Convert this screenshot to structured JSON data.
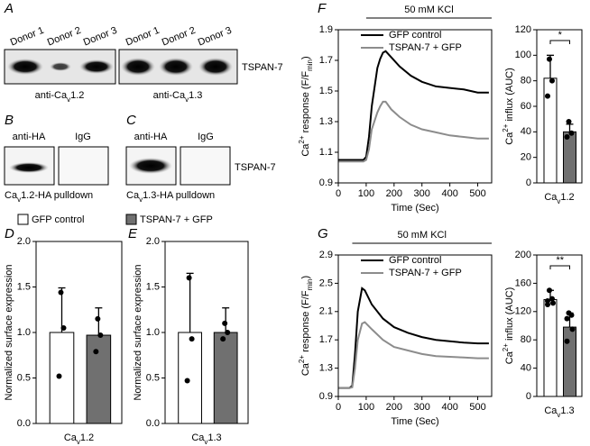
{
  "panel_A": {
    "letter": "A",
    "lanes": [
      "Donor 1",
      "Donor 2",
      "Donor 3",
      "Donor 1",
      "Donor 2",
      "Donor 3"
    ],
    "band_label": "TSPAN-7",
    "antibodies": [
      [
        {
          "text": "anti-Ca"
        },
        {
          "text": "v",
          "sub": true
        },
        {
          "text": "1.2"
        }
      ],
      [
        {
          "text": "anti-Ca"
        },
        {
          "text": "v",
          "sub": true
        },
        {
          "text": "1.3"
        }
      ]
    ]
  },
  "panel_B": {
    "letter": "B",
    "lanes": [
      "anti-HA",
      "IgG"
    ],
    "caption": [
      {
        "text": "Ca"
      },
      {
        "text": "v",
        "sub": true
      },
      {
        "text": "1.2-HA pulldown"
      }
    ]
  },
  "panel_C": {
    "letter": "C",
    "lanes": [
      "anti-HA",
      "IgG"
    ],
    "band_label": "TSPAN-7",
    "caption": [
      {
        "text": "Ca"
      },
      {
        "text": "v",
        "sub": true
      },
      {
        "text": "1.3-HA pulldown"
      }
    ]
  },
  "chart_data": [
    {
      "type": "bar",
      "panel": "D",
      "ylabel": [
        {
          "text": "Normalized surface expression"
        }
      ],
      "xlabel": [
        {
          "text": "Ca"
        },
        {
          "text": "v",
          "sub": true
        },
        {
          "text": "1.2"
        }
      ],
      "ylim": [
        0,
        2
      ],
      "yticks": [
        {
          "value": 0,
          "label": "0.0"
        },
        {
          "value": 0.5,
          "label": "0.5"
        },
        {
          "value": 1,
          "label": "1.0"
        },
        {
          "value": 1.5,
          "label": "1.5"
        },
        {
          "value": 2,
          "label": "2.0"
        }
      ],
      "series": [
        {
          "name": "GFP control",
          "color": "#ffffff",
          "values": [
            1.0
          ],
          "errors": [
            0.49
          ],
          "points": [
            1.44,
            1.05,
            0.52
          ]
        },
        {
          "name": "TSPAN-7 + GFP",
          "color": "#707070",
          "values": [
            0.97
          ],
          "errors": [
            0.3
          ],
          "points": [
            1.15,
            0.97,
            0.79
          ]
        }
      ]
    },
    {
      "type": "bar",
      "panel": "E",
      "ylabel": [
        {
          "text": "Normalized surface expression"
        }
      ],
      "xlabel": [
        {
          "text": "Ca"
        },
        {
          "text": "v",
          "sub": true
        },
        {
          "text": "1.3"
        }
      ],
      "ylim": [
        0,
        2
      ],
      "yticks": [
        {
          "value": 0,
          "label": "0.0"
        },
        {
          "value": 0.5,
          "label": "0.5"
        },
        {
          "value": 1,
          "label": "1.0"
        },
        {
          "value": 1.5,
          "label": "1.5"
        },
        {
          "value": 2,
          "label": "2.0"
        }
      ],
      "series": [
        {
          "color": "#ffffff",
          "values": [
            1.0
          ],
          "errors": [
            0.65
          ],
          "points": [
            1.6,
            0.93,
            0.47
          ]
        },
        {
          "color": "#707070",
          "values": [
            1.0
          ],
          "errors": [
            0.27
          ],
          "points": [
            1.1,
            1.0,
            0.93
          ]
        }
      ]
    },
    {
      "type": "line",
      "panel": "F",
      "stimulus": {
        "label": "50 mM KCl",
        "start": 100,
        "end": 550
      },
      "x": [
        0,
        90,
        100,
        110,
        120,
        140,
        150,
        160,
        170,
        190,
        220,
        260,
        300,
        350,
        400,
        450,
        500,
        540
      ],
      "xlim": [
        0,
        550
      ],
      "xticks": [
        0,
        100,
        200,
        300,
        400,
        500
      ],
      "xlabel": [
        {
          "text": "Time (Sec)"
        }
      ],
      "ylim": [
        0.9,
        1.9
      ],
      "yticks": [
        0.9,
        1.1,
        1.3,
        1.5,
        1.7,
        1.9
      ],
      "ylabel": [
        {
          "text": "Ca"
        },
        {
          "text": "2+",
          "sup": true
        },
        {
          "text": " response (F/F"
        },
        {
          "text": "min",
          "sub": true
        },
        {
          "text": ")"
        }
      ],
      "series": [
        {
          "name": "GFP control",
          "color": "#000000",
          "values": [
            1.05,
            1.05,
            1.07,
            1.2,
            1.4,
            1.65,
            1.71,
            1.75,
            1.76,
            1.72,
            1.66,
            1.6,
            1.56,
            1.53,
            1.52,
            1.51,
            1.49,
            1.49
          ]
        },
        {
          "name": "TSPAN-7 + GFP",
          "color": "#8c8c8c",
          "values": [
            1.04,
            1.04,
            1.05,
            1.12,
            1.25,
            1.36,
            1.4,
            1.43,
            1.43,
            1.38,
            1.33,
            1.28,
            1.25,
            1.23,
            1.21,
            1.2,
            1.19,
            1.19
          ]
        }
      ]
    },
    {
      "type": "bar",
      "ylabel": [
        {
          "text": "Ca"
        },
        {
          "text": "2+",
          "sup": true
        },
        {
          "text": " influx (AUC)"
        }
      ],
      "xlabel": [
        {
          "text": "Ca"
        },
        {
          "text": "v",
          "sub": true
        },
        {
          "text": "1.2"
        }
      ],
      "ylim": [
        0,
        120
      ],
      "yticks": [
        0,
        20,
        40,
        60,
        80,
        100,
        120
      ],
      "significance": "*",
      "series": [
        {
          "color": "#ffffff",
          "values": [
            82
          ],
          "errors": [
            18
          ],
          "points": [
            97,
            80,
            68
          ]
        },
        {
          "color": "#707070",
          "values": [
            40
          ],
          "errors": [
            6
          ],
          "points": [
            48,
            39,
            36
          ]
        }
      ]
    },
    {
      "type": "line",
      "panel": "G",
      "stimulus": {
        "label": "50 mM KCl",
        "start": 50,
        "end": 550
      },
      "x": [
        0,
        40,
        50,
        60,
        70,
        85,
        95,
        120,
        160,
        200,
        250,
        300,
        350,
        400,
        450,
        500,
        540
      ],
      "xlim": [
        0,
        550
      ],
      "xticks": [
        0,
        100,
        200,
        300,
        400,
        500
      ],
      "xlabel": [
        {
          "text": "Time (Sec)"
        }
      ],
      "ylim": [
        0.9,
        2.9
      ],
      "yticks": [
        0.9,
        1.3,
        1.7,
        2.1,
        2.5,
        2.9
      ],
      "ylabel": [
        {
          "text": "Ca"
        },
        {
          "text": "2+",
          "sup": true
        },
        {
          "text": " response (F/F"
        },
        {
          "text": "min",
          "sub": true
        },
        {
          "text": ")"
        }
      ],
      "series": [
        {
          "name": "GFP control",
          "color": "#000000",
          "values": [
            1.02,
            1.02,
            1.05,
            1.5,
            2.1,
            2.43,
            2.4,
            2.2,
            2.0,
            1.88,
            1.8,
            1.74,
            1.7,
            1.68,
            1.66,
            1.65,
            1.65
          ]
        },
        {
          "name": "TSPAN-7 + GFP",
          "color": "#8c8c8c",
          "values": [
            1.02,
            1.02,
            1.03,
            1.3,
            1.7,
            1.93,
            1.95,
            1.85,
            1.7,
            1.6,
            1.55,
            1.5,
            1.47,
            1.46,
            1.45,
            1.44,
            1.44
          ]
        }
      ]
    },
    {
      "type": "bar",
      "ylabel": [
        {
          "text": "Ca"
        },
        {
          "text": "2+",
          "sup": true
        },
        {
          "text": " influx (AUC)"
        }
      ],
      "xlabel": [
        {
          "text": "Ca"
        },
        {
          "text": "v",
          "sub": true
        },
        {
          "text": "1.3"
        }
      ],
      "ylim": [
        0,
        200
      ],
      "yticks": [
        0,
        40,
        80,
        120,
        160,
        200
      ],
      "significance": "**",
      "series": [
        {
          "color": "#ffffff",
          "values": [
            137
          ],
          "errors": [
            13
          ],
          "points": [
            150,
            138,
            135,
            132,
            130
          ]
        },
        {
          "color": "#707070",
          "values": [
            98
          ],
          "errors": [
            20
          ],
          "points": [
            118,
            115,
            110,
            95,
            78
          ]
        }
      ]
    }
  ]
}
